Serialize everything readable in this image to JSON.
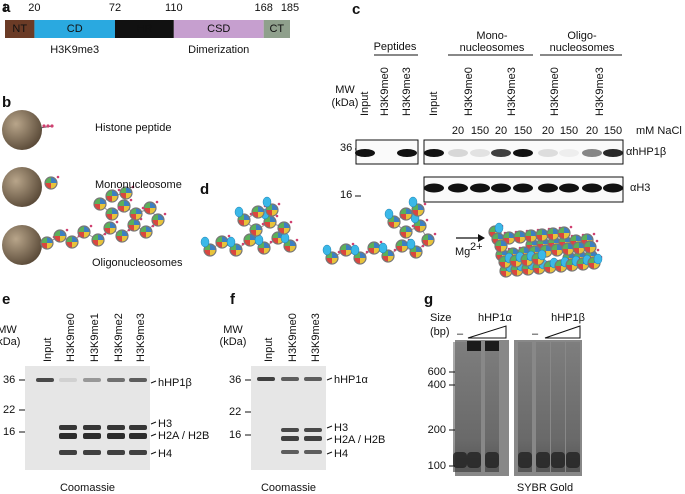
{
  "panel_a": {
    "letter": "a",
    "boundaries": [
      1,
      20,
      72,
      110,
      168,
      185
    ],
    "domains": [
      {
        "name": "NT",
        "color": "#6b3b26"
      },
      {
        "name": "CD",
        "color": "#2aa9e0"
      },
      {
        "name": "HR",
        "color": "#111111"
      },
      {
        "name": "CSD",
        "color": "#c69fcf"
      },
      {
        "name": "CT",
        "color": "#8fa08c"
      }
    ],
    "annotations": [
      "H3K9me3",
      "Dimerization"
    ]
  },
  "panel_b": {
    "letter": "b",
    "labels": [
      "Histone peptide",
      "Mononucleosome",
      "Oligonucleosomes"
    ]
  },
  "panel_c": {
    "letter": "c",
    "group_labels": [
      "Peptides",
      "Mono-",
      "nucleosomes",
      "Oligo-",
      "nucleosomes"
    ],
    "mw_label": [
      "MW",
      "(kDa)"
    ],
    "lanes": [
      "Input",
      "H3K9me0",
      "H3K9me3",
      "Input",
      "H3K9me0",
      "H3K9me3",
      "H3K9me0",
      "H3K9me3"
    ],
    "salt": [
      "20",
      "150",
      "20",
      "150",
      "20",
      "150",
      "20",
      "150"
    ],
    "salt_unit": "mM NaCl",
    "mw_ticks": [
      "36",
      "16"
    ],
    "antibodies": [
      "αhHP1β",
      "αH3"
    ]
  },
  "panel_d": {
    "letter": "d",
    "ion": "Mg",
    "charge": "2+"
  },
  "panel_e": {
    "letter": "e",
    "mw_label": [
      "MW",
      "(kDa)"
    ],
    "lanes": [
      "Input",
      "H3K9me0",
      "H3K9me1",
      "H3K9me2",
      "H3K9me3"
    ],
    "mw_ticks": [
      "36",
      "22",
      "16"
    ],
    "bands": [
      "hHP1β",
      "H3",
      "H2A / H2B",
      "H4"
    ],
    "stain": "Coomassie"
  },
  "panel_f": {
    "letter": "f",
    "mw_label": [
      "MW",
      "(kDa)"
    ],
    "lanes": [
      "Input",
      "H3K9me0",
      "H3K9me3"
    ],
    "mw_ticks": [
      "36",
      "22",
      "16"
    ],
    "bands": [
      "hHP1α",
      "H3",
      "H2A / H2B",
      "H4"
    ],
    "stain": "Coomassie"
  },
  "panel_g": {
    "letter": "g",
    "size_label": [
      "Size",
      "(bp)"
    ],
    "groups": [
      "hHP1α",
      "hHP1β"
    ],
    "controls": [
      "–",
      "–"
    ],
    "size_ticks": [
      "600",
      "400",
      "200",
      "100"
    ],
    "stain": "SYBR Gold"
  }
}
